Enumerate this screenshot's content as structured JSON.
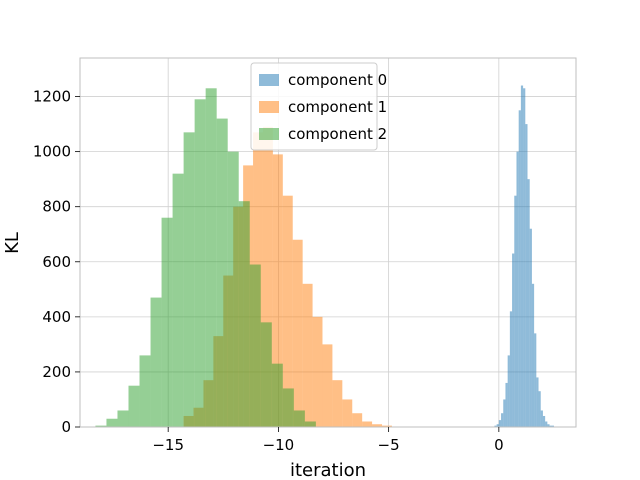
{
  "chart_data": {
    "type": "histogram",
    "xlabel": "iteration",
    "ylabel": "KL",
    "xlim": [
      -19.0,
      3.5
    ],
    "ylim": [
      0,
      1340
    ],
    "x_ticks": [
      -15,
      -10,
      -5,
      0
    ],
    "y_ticks": [
      0,
      200,
      400,
      600,
      800,
      1000,
      1200
    ],
    "grid": true,
    "legend_position": "top-center",
    "series": [
      {
        "name": "component 0",
        "color": "#1f77b4",
        "bins": [
          [
            -0.2,
            -0.1,
            5
          ],
          [
            -0.1,
            0.0,
            10
          ],
          [
            0.0,
            0.1,
            25
          ],
          [
            0.1,
            0.2,
            50
          ],
          [
            0.2,
            0.3,
            100
          ],
          [
            0.3,
            0.4,
            160
          ],
          [
            0.4,
            0.5,
            260
          ],
          [
            0.5,
            0.6,
            420
          ],
          [
            0.6,
            0.7,
            630
          ],
          [
            0.7,
            0.8,
            840
          ],
          [
            0.8,
            0.9,
            1000
          ],
          [
            0.9,
            1.0,
            1150
          ],
          [
            1.0,
            1.1,
            1240
          ],
          [
            1.1,
            1.2,
            1230
          ],
          [
            1.2,
            1.3,
            1100
          ],
          [
            1.3,
            1.4,
            900
          ],
          [
            1.4,
            1.5,
            720
          ],
          [
            1.5,
            1.6,
            520
          ],
          [
            1.6,
            1.7,
            340
          ],
          [
            1.7,
            1.8,
            180
          ],
          [
            1.8,
            1.9,
            130
          ],
          [
            1.9,
            2.0,
            60
          ],
          [
            2.0,
            2.1,
            40
          ],
          [
            2.1,
            2.2,
            20
          ],
          [
            2.2,
            2.3,
            10
          ],
          [
            2.3,
            2.5,
            5
          ]
        ]
      },
      {
        "name": "component 1",
        "color": "#ff7f0e",
        "bins": [
          [
            -14.3,
            -13.85,
            40
          ],
          [
            -13.85,
            -13.4,
            70
          ],
          [
            -13.4,
            -12.95,
            170
          ],
          [
            -12.95,
            -12.5,
            330
          ],
          [
            -12.5,
            -12.05,
            550
          ],
          [
            -12.05,
            -11.6,
            800
          ],
          [
            -11.6,
            -11.15,
            950
          ],
          [
            -11.15,
            -10.7,
            1070
          ],
          [
            -10.7,
            -10.25,
            1090
          ],
          [
            -10.25,
            -9.8,
            990
          ],
          [
            -9.8,
            -9.35,
            840
          ],
          [
            -9.35,
            -8.9,
            680
          ],
          [
            -8.9,
            -8.45,
            520
          ],
          [
            -8.45,
            -8.0,
            400
          ],
          [
            -8.0,
            -7.55,
            300
          ],
          [
            -7.55,
            -7.1,
            170
          ],
          [
            -7.1,
            -6.65,
            100
          ],
          [
            -6.65,
            -6.2,
            50
          ],
          [
            -6.2,
            -5.75,
            20
          ],
          [
            -5.75,
            -5.3,
            10
          ],
          [
            -5.3,
            -4.85,
            5
          ]
        ]
      },
      {
        "name": "component 2",
        "color": "#2ca02c",
        "bins": [
          [
            -18.3,
            -17.8,
            5
          ],
          [
            -17.8,
            -17.3,
            30
          ],
          [
            -17.3,
            -16.8,
            60
          ],
          [
            -16.8,
            -16.3,
            150
          ],
          [
            -16.3,
            -15.8,
            260
          ],
          [
            -15.8,
            -15.3,
            470
          ],
          [
            -15.3,
            -14.8,
            760
          ],
          [
            -14.8,
            -14.3,
            920
          ],
          [
            -14.3,
            -13.8,
            1070
          ],
          [
            -13.8,
            -13.3,
            1190
          ],
          [
            -13.3,
            -12.8,
            1230
          ],
          [
            -12.8,
            -12.3,
            1120
          ],
          [
            -12.3,
            -11.8,
            1000
          ],
          [
            -11.8,
            -11.3,
            820
          ],
          [
            -11.3,
            -10.8,
            590
          ],
          [
            -10.8,
            -10.3,
            380
          ],
          [
            -10.3,
            -9.8,
            230
          ],
          [
            -9.8,
            -9.3,
            140
          ],
          [
            -9.3,
            -8.8,
            60
          ],
          [
            -8.8,
            -8.3,
            20
          ]
        ]
      }
    ]
  }
}
